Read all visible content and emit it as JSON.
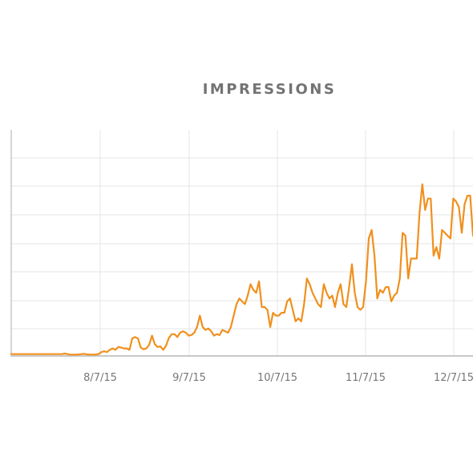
{
  "title": "IMPRESSIONS",
  "colors": {
    "line": "#f0901e",
    "grid": "#e4e4e4",
    "axis": "#c8c8c8",
    "title": "#737373",
    "ticks": "#777777"
  },
  "chart_data": {
    "type": "line",
    "title": "IMPRESSIONS",
    "xlabel": "",
    "ylabel": "",
    "x_tick_labels": [
      "8/7/15",
      "9/7/15",
      "10/7/15",
      "11/7/15",
      "12/7/15"
    ],
    "y_tick_labels": [],
    "grid": true,
    "y_range": [
      0,
      8
    ],
    "series": [
      {
        "values": [
          0.05,
          0.05,
          0.05,
          0.05,
          0.05,
          0.05,
          0.05,
          0.05,
          0.05,
          0.05,
          0.05,
          0.05,
          0.05,
          0.05,
          0.05,
          0.05,
          0.05,
          0.05,
          0.05,
          0.07,
          0.05,
          0.03,
          0.03,
          0.03,
          0.04,
          0.05,
          0.06,
          0.04,
          0.03,
          0.03,
          0.04,
          0.05,
          0.12,
          0.15,
          0.12,
          0.2,
          0.25,
          0.2,
          0.3,
          0.28,
          0.25,
          0.25,
          0.2,
          0.6,
          0.65,
          0.6,
          0.28,
          0.22,
          0.25,
          0.38,
          0.7,
          0.4,
          0.3,
          0.32,
          0.2,
          0.35,
          0.62,
          0.75,
          0.75,
          0.65,
          0.8,
          0.85,
          0.8,
          0.7,
          0.72,
          0.8,
          1.0,
          1.4,
          1.0,
          0.9,
          0.95,
          0.85,
          0.7,
          0.75,
          0.72,
          0.9,
          0.85,
          0.8,
          1.0,
          1.4,
          1.8,
          2.0,
          1.9,
          1.8,
          2.1,
          2.5,
          2.3,
          2.2,
          2.6,
          1.7,
          1.7,
          1.6,
          1.0,
          1.5,
          1.4,
          1.4,
          1.5,
          1.5,
          1.9,
          2.0,
          1.6,
          1.2,
          1.3,
          1.2,
          1.8,
          2.7,
          2.5,
          2.2,
          2.0,
          1.8,
          1.7,
          2.5,
          2.2,
          2.0,
          2.1,
          1.7,
          2.2,
          2.5,
          1.8,
          1.7,
          2.4,
          3.2,
          2.2,
          1.7,
          1.6,
          1.7,
          2.6,
          4.1,
          4.4,
          3.5,
          2.0,
          2.3,
          2.2,
          2.4,
          2.4,
          1.9,
          2.1,
          2.2,
          2.7,
          4.3,
          4.2,
          2.7,
          3.4,
          3.4,
          3.4,
          5.0,
          6.0,
          5.1,
          5.5,
          5.5,
          3.5,
          3.8,
          3.4,
          4.4,
          4.3,
          4.2,
          4.1,
          5.5,
          5.4,
          5.2,
          4.3,
          5.3,
          5.6,
          5.6,
          4.2
        ]
      }
    ]
  }
}
